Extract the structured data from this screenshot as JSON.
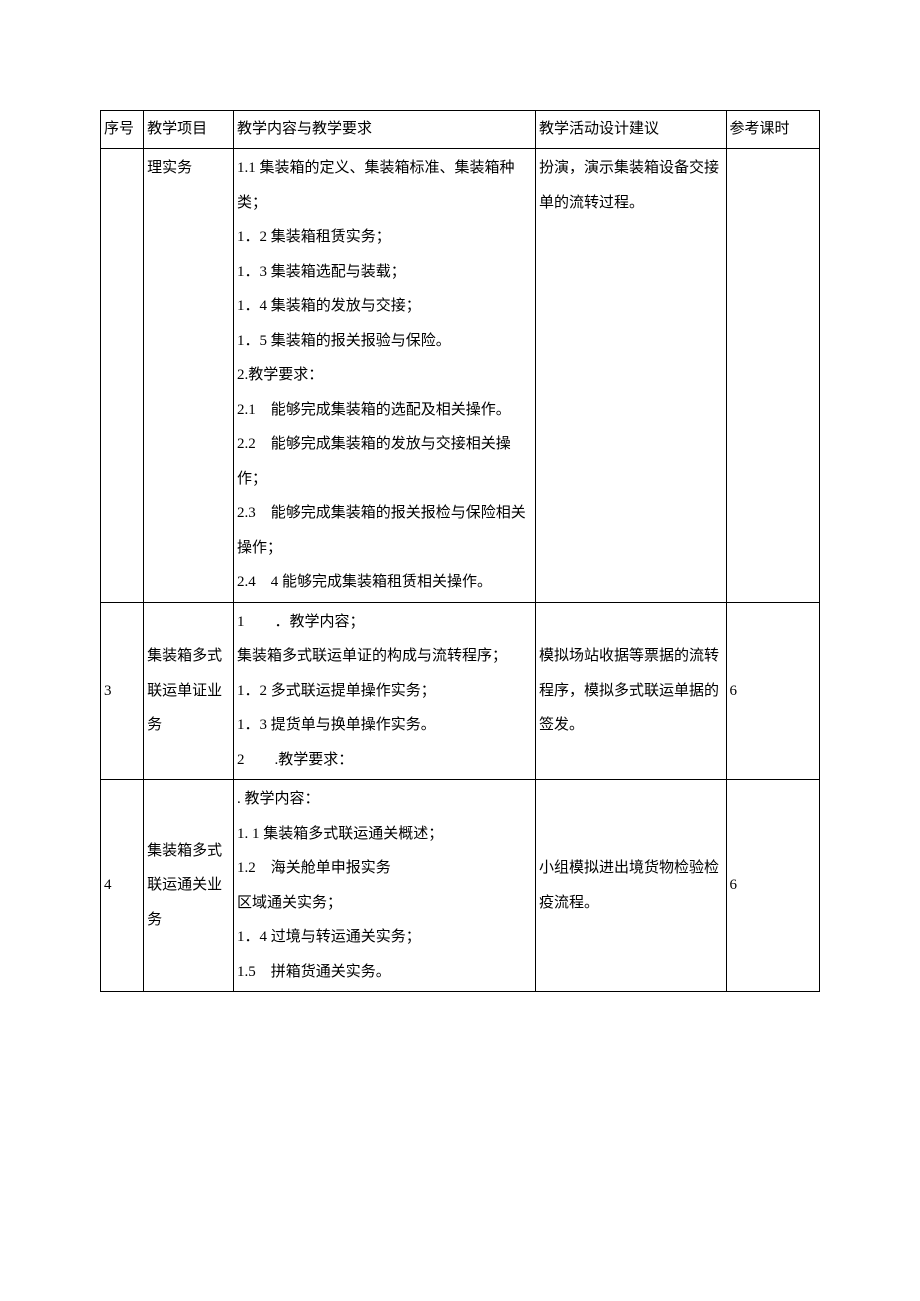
{
  "header": {
    "seq": "序号",
    "project": "教学项目",
    "content": "教学内容与教学要求",
    "activity": "教学活动设计建议",
    "hours": "参考课时"
  },
  "rows": [
    {
      "seq": "",
      "project": "理实务",
      "content_lines": [
        "",
        "1.1 集装箱的定义、集装箱标准、集装箱种类；",
        "1．2 集装箱租赁实务；",
        "1．3 集装箱选配与装载；",
        "1．4 集装箱的发放与交接；",
        "1．5 集装箱的报关报验与保险。",
        "2.教学要求：",
        "2.1　能够完成集装箱的选配及相关操作。",
        "2.2　能够完成集装箱的发放与交接相关操作；",
        "2.3　能够完成集装箱的报关报检与保险相关操作；",
        "2.4　4 能够完成集装箱租赁相关操作。"
      ],
      "activity_lines": [
        "扮演，演示集装箱设备交接单的流转过程。"
      ],
      "hours": ""
    },
    {
      "seq": "3",
      "project": "集装箱多式联运单证业务",
      "content_lines": [
        "1　　．教学内容；",
        "集装箱多式联运单证的构成与流转程序；",
        "",
        "1．2 多式联运提单操作实务；",
        "",
        "1．3 提货单与换单操作实务。",
        "2　　.教学要求："
      ],
      "activity_lines": [
        "模拟场站收据等票据的流转程序，模拟多式联运单据的签发。"
      ],
      "hours": "6"
    },
    {
      "seq": "4",
      "project": "集装箱多式联运通关业务",
      "content_lines": [
        ". 教学内容：",
        "1. 1 集装箱多式联运通关概述；",
        "1.2　海关舱单申报实务",
        "区域通关实务；",
        "1．4 过境与转运通关实务；",
        "1.5　拼箱货通关实务。"
      ],
      "activity_lines": [
        "小组模拟进出境货物检验检疫流程。"
      ],
      "hours": "6"
    }
  ]
}
